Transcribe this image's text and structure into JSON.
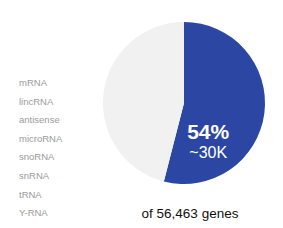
{
  "chart_data": {
    "type": "pie",
    "values": [
      54,
      46
    ],
    "colors": [
      "#2b47a3",
      "#f1f1f1"
    ],
    "data_labels": true,
    "value_labels": [
      "54%",
      null
    ],
    "annotation": "~30K",
    "caption": "of 56,463 genes",
    "gene_types": [
      "mRNA",
      "lincRNA",
      "antisense",
      "microRNA",
      "snoRNA",
      "snRNA",
      "tRNA",
      "Y-RNA"
    ]
  }
}
